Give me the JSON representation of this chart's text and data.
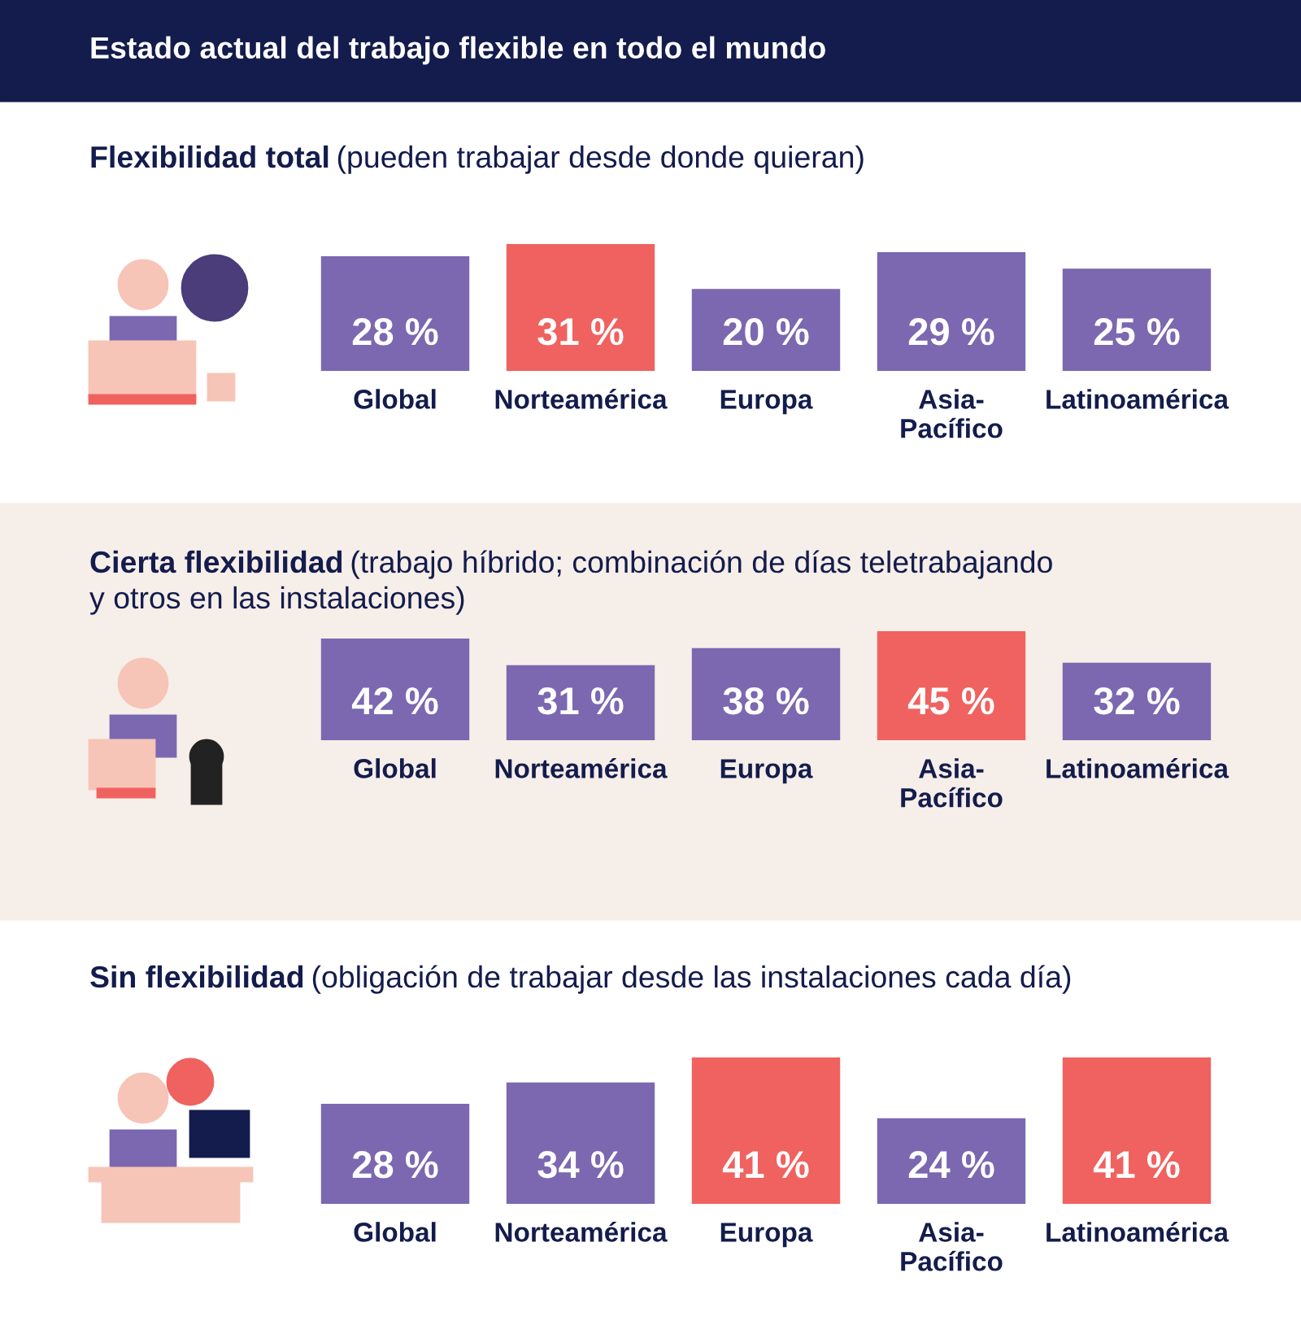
{
  "chart_data": [
    {
      "type": "bar",
      "title": "Flexibilidad total",
      "subtitle": "(pueden trabajar desde donde quieran)",
      "annotations": [
        "Estado actual del trabajo flexible en todo el mundo"
      ],
      "categories": [
        "Global",
        "Norteamérica",
        "Europa",
        "Asia-\nPacífico",
        "Latinoamérica"
      ],
      "values": [
        28,
        31,
        20,
        29,
        25
      ],
      "colors": [
        "#7b68b0",
        "#f0625f",
        "#7b68b0",
        "#7b68b0",
        "#7b68b0"
      ],
      "value_labels": [
        "28 %",
        "31 %",
        "20 %",
        "29 %",
        "25 %"
      ],
      "ylim": [
        0,
        31
      ],
      "tick_labels": "x"
    },
    {
      "type": "bar",
      "title": "Cierta flexibilidad",
      "subtitle": "(trabajo híbrido; combinación de días teletrabajando\ny otros en las instalaciones)",
      "categories": [
        "Global",
        "Norteamérica",
        "Europa",
        "Asia-\nPacífico",
        "Latinoamérica"
      ],
      "values": [
        42,
        31,
        38,
        45,
        32
      ],
      "colors": [
        "#7b68b0",
        "#7b68b0",
        "#7b68b0",
        "#f0625f",
        "#7b68b0"
      ],
      "value_labels": [
        "42 %",
        "31 %",
        "38 %",
        "45 %",
        "32 %"
      ],
      "ylim": [
        0,
        45
      ],
      "tick_labels": "x"
    },
    {
      "type": "bar",
      "title": "Sin flexibilidad",
      "subtitle": "(obligación de trabajar desde las instalaciones cada día)",
      "categories": [
        "Global",
        "Norteamérica",
        "Europa",
        "Asia-\nPacífico",
        "Latinoamérica"
      ],
      "values": [
        28,
        34,
        41,
        24,
        41
      ],
      "colors": [
        "#7b68b0",
        "#7b68b0",
        "#f0625f",
        "#7b68b0",
        "#f0625f"
      ],
      "value_labels": [
        "28 %",
        "34 %",
        "41 %",
        "24 %",
        "41 %"
      ],
      "ylim": [
        0,
        41
      ],
      "tick_labels": "x"
    }
  ]
}
